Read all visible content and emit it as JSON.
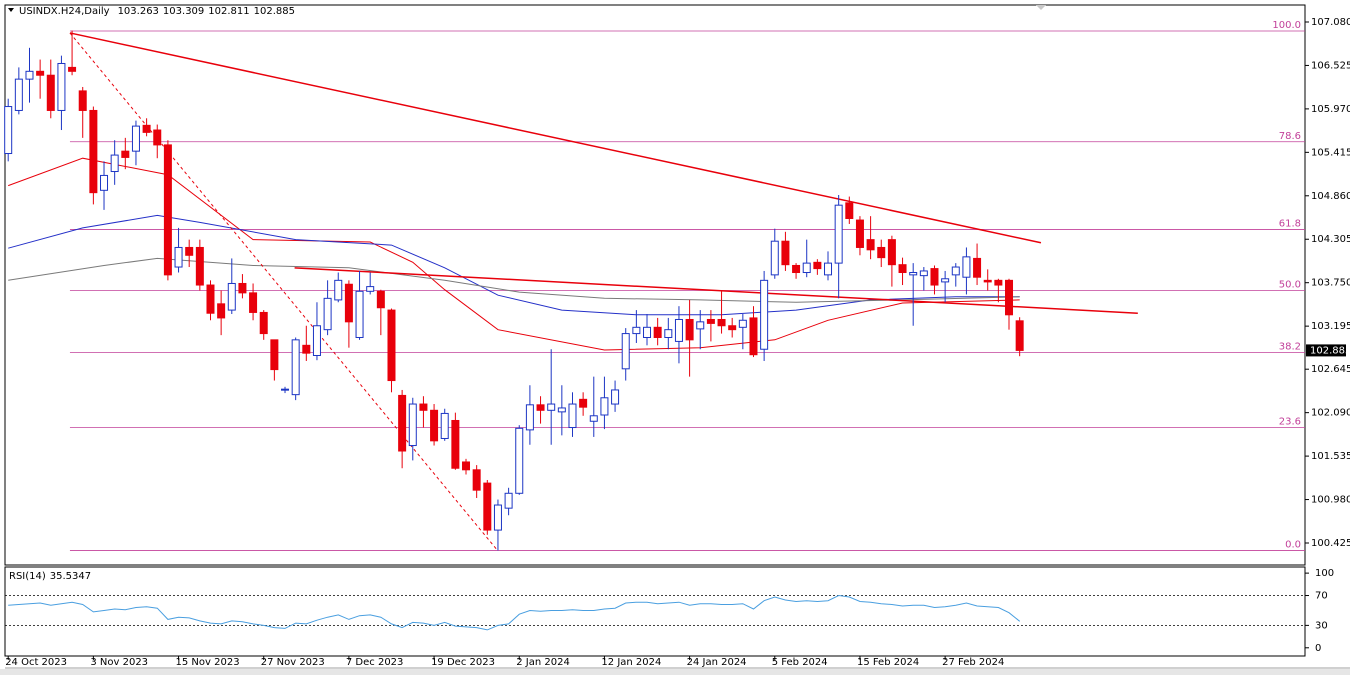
{
  "chart_data": {
    "type": "candlestick",
    "symbol": "USINDX.H24,Daily",
    "categories": [
      "24 Oct 2023",
      null,
      null,
      null,
      null,
      null,
      null,
      null,
      "3 Nov 2023",
      null,
      null,
      null,
      null,
      null,
      null,
      null,
      "15 Nov 2023",
      null,
      null,
      null,
      null,
      null,
      null,
      null,
      "27 Nov 2023",
      null,
      null,
      null,
      null,
      null,
      null,
      null,
      "7 Dec 2023",
      null,
      null,
      null,
      null,
      null,
      null,
      null,
      "19 Dec 2023",
      null,
      null,
      null,
      null,
      null,
      null,
      null,
      "2 Jan 2024",
      null,
      null,
      null,
      null,
      null,
      null,
      null,
      "12 Jan 2024",
      null,
      null,
      null,
      null,
      null,
      null,
      null,
      "24 Jan 2024",
      null,
      null,
      null,
      null,
      null,
      null,
      null,
      "5 Feb 2024",
      null,
      null,
      null,
      null,
      null,
      null,
      null,
      "15 Feb 2024",
      null,
      null,
      null,
      null,
      null,
      null,
      null,
      "27 Feb 2024",
      null,
      null,
      null,
      null,
      null,
      null,
      null
    ],
    "open": [
      105.4,
      105.95,
      106.35,
      106.45,
      106.4,
      105.95,
      106.5,
      106.2,
      105.95,
      104.93,
      105.17,
      105.43,
      105.43,
      105.76,
      105.7,
      105.51,
      103.95,
      104.2,
      104.2,
      103.72,
      103.48,
      103.4,
      103.74,
      103.62,
      103.37,
      103.02,
      102.38,
      102.32,
      102.95,
      102.82,
      103.15,
      103.53,
      103.73,
      103.05,
      103.64,
      103.64,
      103.4,
      102.31,
      101.67,
      102.2,
      102.12,
      101.76,
      101.99,
      101.46,
      101.36,
      101.19,
      100.59,
      100.87,
      101.06,
      101.87,
      102.19,
      102.12,
      102.1,
      101.9,
      102.26,
      101.98,
      102.06,
      102.2,
      102.65,
      103.1,
      103.05,
      103.18,
      103.05,
      103.0,
      103.28,
      103.16,
      103.28,
      103.28,
      103.2,
      103.18,
      103.3,
      102.9,
      103.85,
      104.28,
      103.97,
      103.88,
      104.01,
      103.85,
      104.0,
      104.77,
      104.55,
      104.3,
      104.2,
      104.3,
      103.98,
      103.85,
      103.84,
      103.93,
      103.76,
      103.85,
      103.82,
      104.06,
      103.78,
      103.78,
      103.78,
      103.263
    ],
    "high": [
      106.1,
      106.5,
      106.75,
      106.6,
      106.6,
      106.65,
      106.97,
      106.25,
      106.0,
      105.3,
      105.57,
      105.6,
      105.82,
      105.85,
      105.77,
      105.57,
      104.45,
      104.3,
      104.3,
      103.78,
      103.65,
      104.06,
      103.86,
      103.74,
      103.4,
      103.02,
      102.42,
      103.05,
      103.2,
      103.5,
      103.78,
      103.88,
      103.78,
      103.9,
      103.88,
      103.66,
      103.42,
      102.38,
      102.28,
      102.3,
      102.2,
      102.14,
      102.09,
      101.5,
      101.42,
      101.23,
      100.98,
      101.13,
      101.93,
      102.44,
      102.3,
      102.9,
      102.44,
      102.35,
      102.35,
      102.55,
      102.55,
      102.5,
      103.17,
      103.4,
      103.35,
      103.3,
      103.3,
      103.45,
      103.53,
      103.4,
      103.4,
      103.65,
      103.3,
      103.35,
      103.45,
      103.9,
      104.44,
      104.4,
      104.0,
      104.3,
      104.05,
      104.15,
      104.87,
      104.85,
      104.6,
      104.6,
      104.3,
      104.35,
      104.07,
      104.0,
      103.95,
      103.97,
      103.9,
      104.0,
      104.2,
      104.25,
      103.92,
      103.8,
      103.8,
      103.309
    ],
    "low": [
      105.3,
      105.9,
      106.05,
      106.1,
      105.85,
      105.7,
      106.4,
      105.6,
      104.75,
      104.68,
      105.0,
      105.2,
      105.25,
      105.62,
      105.34,
      103.78,
      103.88,
      103.95,
      103.65,
      103.27,
      103.08,
      103.35,
      103.55,
      103.27,
      103.02,
      102.5,
      102.34,
      102.25,
      102.75,
      102.76,
      103.08,
      103.5,
      102.92,
      103.02,
      103.6,
      103.08,
      102.35,
      101.38,
      101.48,
      101.9,
      101.67,
      101.73,
      101.36,
      101.3,
      101.0,
      100.53,
      100.33,
      100.78,
      101.04,
      101.68,
      101.95,
      101.68,
      101.8,
      101.78,
      102.05,
      101.78,
      101.88,
      102.1,
      102.5,
      102.98,
      102.95,
      102.95,
      102.9,
      102.72,
      102.55,
      102.9,
      103.0,
      103.1,
      103.05,
      102.9,
      102.8,
      102.75,
      103.8,
      103.9,
      103.8,
      103.82,
      103.85,
      103.78,
      103.55,
      104.5,
      104.1,
      104.05,
      103.95,
      103.7,
      103.72,
      103.2,
      103.65,
      103.6,
      103.5,
      103.7,
      103.6,
      103.72,
      103.65,
      103.5,
      103.15,
      102.811
    ],
    "close": [
      106.0,
      106.35,
      106.45,
      106.4,
      105.95,
      106.55,
      106.45,
      105.95,
      104.9,
      105.12,
      105.38,
      105.35,
      105.75,
      105.67,
      105.51,
      103.85,
      104.2,
      104.1,
      103.72,
      103.36,
      103.3,
      103.74,
      103.62,
      103.37,
      103.1,
      102.64,
      102.39,
      103.02,
      102.85,
      103.2,
      103.55,
      103.78,
      103.25,
      103.64,
      103.7,
      103.43,
      102.5,
      101.6,
      102.2,
      102.12,
      101.73,
      102.08,
      101.38,
      101.36,
      101.1,
      100.59,
      100.91,
      101.06,
      101.89,
      102.19,
      102.12,
      102.2,
      102.15,
      102.2,
      102.16,
      102.05,
      102.28,
      102.38,
      103.1,
      103.18,
      103.18,
      103.05,
      103.15,
      103.28,
      103.02,
      103.25,
      103.23,
      103.2,
      103.15,
      103.27,
      102.83,
      103.78,
      104.28,
      103.98,
      103.88,
      104.0,
      103.93,
      104.0,
      104.74,
      104.57,
      104.2,
      104.17,
      104.07,
      103.98,
      103.88,
      103.88,
      103.9,
      103.72,
      103.8,
      103.95,
      104.08,
      103.82,
      103.76,
      103.72,
      103.34,
      102.885
    ],
    "up_color": "#1c35c4",
    "down_color": "#e8000b",
    "xlim": [
      -0.3,
      121.8
    ],
    "ylim": [
      100.144,
      107.297
    ],
    "yticks": [
      {
        "value": 107.08,
        "label": "107.080"
      },
      {
        "value": 106.525,
        "label": "106.525"
      },
      {
        "value": 105.97,
        "label": "105.970"
      },
      {
        "value": 105.415,
        "label": "105.415"
      },
      {
        "value": 104.86,
        "label": "104.860"
      },
      {
        "value": 104.305,
        "label": "104.305"
      },
      {
        "value": 103.75,
        "label": "103.750"
      },
      {
        "value": 103.195,
        "label": "103.195"
      },
      {
        "value": 102.645,
        "label": "102.645"
      },
      {
        "value": 102.09,
        "label": "102.090"
      },
      {
        "value": 101.535,
        "label": "101.535"
      },
      {
        "value": 100.98,
        "label": "100.980"
      },
      {
        "value": 100.425,
        "label": "100.425"
      }
    ],
    "moving_averages": [
      {
        "color": "#e8000b",
        "x": [
          0,
          7,
          15,
          23,
          34,
          38,
          41,
          46,
          56,
          65,
          72,
          77,
          84,
          95
        ],
        "values": [
          104.99,
          105.34,
          105.13,
          104.3,
          104.27,
          104.01,
          103.66,
          103.15,
          102.89,
          102.92,
          103.02,
          103.27,
          103.49,
          103.53
        ]
      },
      {
        "color": "#2430c8",
        "x": [
          0,
          7,
          14,
          18,
          27,
          36,
          41,
          46,
          52,
          59,
          67,
          74,
          81,
          89,
          95
        ],
        "values": [
          104.19,
          104.45,
          104.61,
          104.52,
          104.3,
          104.23,
          103.94,
          103.59,
          103.4,
          103.34,
          103.34,
          103.4,
          103.53,
          103.57,
          103.57
        ]
      },
      {
        "color": "#7a7a7a",
        "x": [
          0,
          9,
          14,
          23,
          32,
          41,
          48,
          56,
          65,
          74,
          84,
          95
        ],
        "values": [
          103.78,
          103.97,
          104.06,
          103.97,
          103.94,
          103.78,
          103.63,
          103.55,
          103.53,
          103.5,
          103.53,
          103.57
        ]
      }
    ],
    "fib_color": "#c2419a",
    "fib_levels": [
      {
        "label": "100.0",
        "value": 106.965
      },
      {
        "label": "78.6",
        "value": 105.55
      },
      {
        "label": "61.8",
        "value": 104.43
      },
      {
        "label": "50.0",
        "value": 103.65
      },
      {
        "label": "38.2",
        "value": 102.86
      },
      {
        "label": "23.6",
        "value": 101.9
      },
      {
        "label": "0.0",
        "value": 100.33
      }
    ],
    "fib_start": 5.8,
    "trendlines": [
      {
        "color": "#e8000b",
        "dashed": false,
        "x": [
          5.8,
          97.0
        ],
        "y": [
          106.94,
          104.26
        ]
      },
      {
        "color": "#e8000b",
        "dashed": false,
        "x": [
          26.9,
          106.1
        ],
        "y": [
          103.94,
          103.36
        ]
      },
      {
        "color": "#e8000b",
        "dashed": true,
        "x": [
          5.8,
          45.9
        ],
        "y": [
          106.94,
          100.34
        ]
      }
    ],
    "rsi": {
      "label": "RSI(14)",
      "value": 35.5347,
      "color": "#4a9fe0",
      "ylim": [
        -11,
        108.2
      ],
      "yticks": [
        100,
        70,
        30,
        0
      ],
      "levels": [
        70,
        30
      ],
      "values": [
        57,
        58,
        59,
        60,
        57,
        59,
        61,
        58,
        48,
        50,
        52,
        51,
        54,
        55,
        53,
        38,
        41,
        40,
        36,
        33,
        32,
        36,
        35,
        32,
        30,
        27,
        26,
        33,
        32,
        37,
        41,
        44,
        38,
        43,
        44,
        41,
        32,
        27,
        34,
        33,
        30,
        34,
        29,
        28,
        27,
        24,
        30,
        32,
        45,
        50,
        49,
        50,
        50,
        51,
        50,
        50,
        52,
        53,
        60,
        61,
        61,
        59,
        60,
        61,
        57,
        59,
        59,
        58,
        58,
        59,
        52,
        63,
        68,
        64,
        62,
        63,
        62,
        63,
        70,
        68,
        62,
        61,
        59,
        58,
        56,
        57,
        57,
        54,
        55,
        57,
        60,
        56,
        55,
        54,
        47,
        35.5347
      ]
    }
  }
}
